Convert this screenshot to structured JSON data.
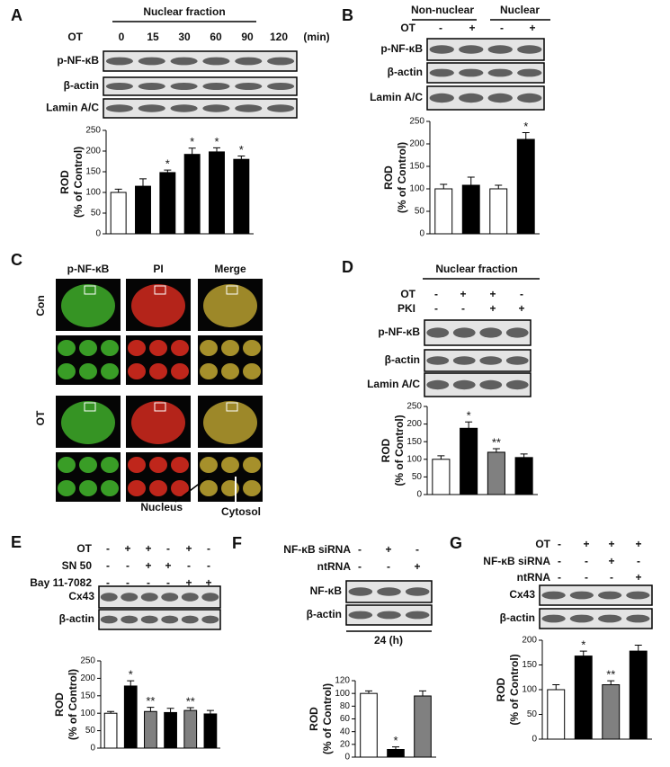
{
  "panels": [
    {
      "letter": "A",
      "headers": [
        "Nuclear fraction"
      ],
      "conditions": [
        {
          "label": "OT",
          "marks": [
            "0",
            "15",
            "30",
            "60",
            "90",
            "120"
          ],
          "suffix": "(min)"
        }
      ],
      "blots": [
        "p-NF-κB",
        "β-actin",
        "Lamin A/C"
      ]
    },
    {
      "letter": "B",
      "headers": [
        "Non-nuclear",
        "Nuclear"
      ],
      "conditions": [
        {
          "label": "OT",
          "marks": [
            "-",
            "+",
            "-",
            "+"
          ]
        }
      ],
      "blots": [
        "p-NF-κB",
        "β-actin",
        "Lamin A/C"
      ]
    },
    {
      "letter": "C",
      "columns": [
        "p-NF-κB",
        "PI",
        "Merge"
      ],
      "rows": [
        "Con",
        "OT"
      ],
      "annotations": [
        "Nucleus",
        "Cytosol"
      ]
    },
    {
      "letter": "D",
      "headers": [
        "Nuclear fraction"
      ],
      "conditions": [
        {
          "label": "OT",
          "marks": [
            "-",
            "+",
            "+",
            "-"
          ]
        },
        {
          "label": "PKI",
          "marks": [
            "-",
            "-",
            "+",
            "+"
          ]
        }
      ],
      "blots": [
        "p-NF-κB",
        "β-actin",
        "Lamin A/C"
      ]
    },
    {
      "letter": "E",
      "conditions": [
        {
          "label": "OT",
          "marks": [
            "-",
            "+",
            "+",
            "-",
            "+",
            "-"
          ]
        },
        {
          "label": "SN 50",
          "marks": [
            "-",
            "-",
            "+",
            "+",
            "-",
            "-"
          ]
        },
        {
          "label": "Bay 11-7082",
          "marks": [
            "-",
            "-",
            "-",
            "-",
            "+",
            "+"
          ]
        }
      ],
      "blots": [
        "Cx43",
        "β-actin"
      ]
    },
    {
      "letter": "F",
      "conditions": [
        {
          "label": "NF-κB siRNA",
          "marks": [
            "-",
            "+",
            "-"
          ]
        },
        {
          "label": "ntRNA",
          "marks": [
            "-",
            "-",
            "+"
          ]
        }
      ],
      "blots": [
        "NF-κB",
        "β-actin"
      ],
      "time": "24 (h)"
    },
    {
      "letter": "G",
      "conditions": [
        {
          "label": "OT",
          "marks": [
            "-",
            "+",
            "+",
            "+"
          ]
        },
        {
          "label": "NF-κB siRNA",
          "marks": [
            "-",
            "-",
            "+",
            "-"
          ]
        },
        {
          "label": "ntRNA",
          "marks": [
            "-",
            "-",
            "-",
            "+"
          ]
        }
      ],
      "blots": [
        "Cx43",
        "β-actin"
      ]
    }
  ],
  "chart_data": [
    {
      "type": "bar",
      "y_label": [
        "ROD",
        "(% of Control)"
      ],
      "categories": [
        null,
        null,
        null,
        null,
        null,
        null
      ],
      "values": [
        100,
        115,
        148,
        192,
        198,
        180
      ],
      "errors": [
        8,
        18,
        6,
        15,
        10,
        8
      ],
      "stars": [
        null,
        null,
        "*",
        "*",
        "*",
        "*"
      ],
      "colors": [
        "#ffffff",
        "#000000",
        "#000000",
        "#000000",
        "#000000",
        "#000000"
      ],
      "ylim": [
        0,
        250
      ],
      "yticks": [
        0,
        50,
        100,
        150,
        200,
        250
      ]
    },
    {
      "type": "bar",
      "y_label": [
        "ROD",
        "(% of Control)"
      ],
      "categories": [
        null,
        null,
        null,
        null
      ],
      "values": [
        100,
        108,
        100,
        210
      ],
      "errors": [
        10,
        18,
        8,
        15
      ],
      "stars": [
        null,
        null,
        null,
        "*"
      ],
      "colors": [
        "#ffffff",
        "#000000",
        "#ffffff",
        "#000000"
      ],
      "ylim": [
        0,
        250
      ],
      "yticks": [
        0,
        50,
        100,
        150,
        200,
        250
      ]
    },
    {
      "type": "bar",
      "y_label": [
        "ROD",
        "(% of Control)"
      ],
      "categories": [
        null,
        null,
        null,
        null
      ],
      "values": [
        100,
        188,
        120,
        105
      ],
      "errors": [
        10,
        18,
        10,
        10
      ],
      "stars": [
        null,
        "*",
        "**",
        null
      ],
      "colors": [
        "#ffffff",
        "#000000",
        "#808080",
        "#000000"
      ],
      "ylim": [
        0,
        250
      ],
      "yticks": [
        0,
        50,
        100,
        150,
        200,
        250
      ]
    },
    {
      "type": "bar",
      "y_label": [
        "ROD",
        "(% of Control)"
      ],
      "categories": [
        null,
        null,
        null,
        null,
        null,
        null
      ],
      "values": [
        100,
        178,
        105,
        102,
        108,
        98
      ],
      "errors": [
        5,
        15,
        12,
        12,
        8,
        10
      ],
      "stars": [
        null,
        "*",
        "**",
        null,
        "**",
        null
      ],
      "colors": [
        "#ffffff",
        "#000000",
        "#808080",
        "#000000",
        "#808080",
        "#000000"
      ],
      "ylim": [
        0,
        250
      ],
      "yticks": [
        0,
        50,
        100,
        150,
        200,
        250
      ]
    },
    {
      "type": "bar",
      "y_label": [
        "ROD",
        "(% of Control)"
      ],
      "categories": [
        null,
        null,
        null
      ],
      "values": [
        100,
        12,
        96
      ],
      "errors": [
        4,
        4,
        8
      ],
      "stars": [
        null,
        "*",
        null
      ],
      "colors": [
        "#ffffff",
        "#000000",
        "#808080"
      ],
      "ylim": [
        0,
        120
      ],
      "yticks": [
        0,
        20,
        40,
        60,
        80,
        100,
        120
      ]
    },
    {
      "type": "bar",
      "y_label": [
        "ROD",
        "(% of Control)"
      ],
      "categories": [
        null,
        null,
        null,
        null
      ],
      "values": [
        100,
        168,
        110,
        178
      ],
      "errors": [
        10,
        10,
        8,
        12
      ],
      "stars": [
        null,
        "*",
        "**",
        null
      ],
      "colors": [
        "#ffffff",
        "#000000",
        "#808080",
        "#000000"
      ],
      "ylim": [
        0,
        200
      ],
      "yticks": [
        0,
        50,
        100,
        150,
        200
      ]
    }
  ]
}
